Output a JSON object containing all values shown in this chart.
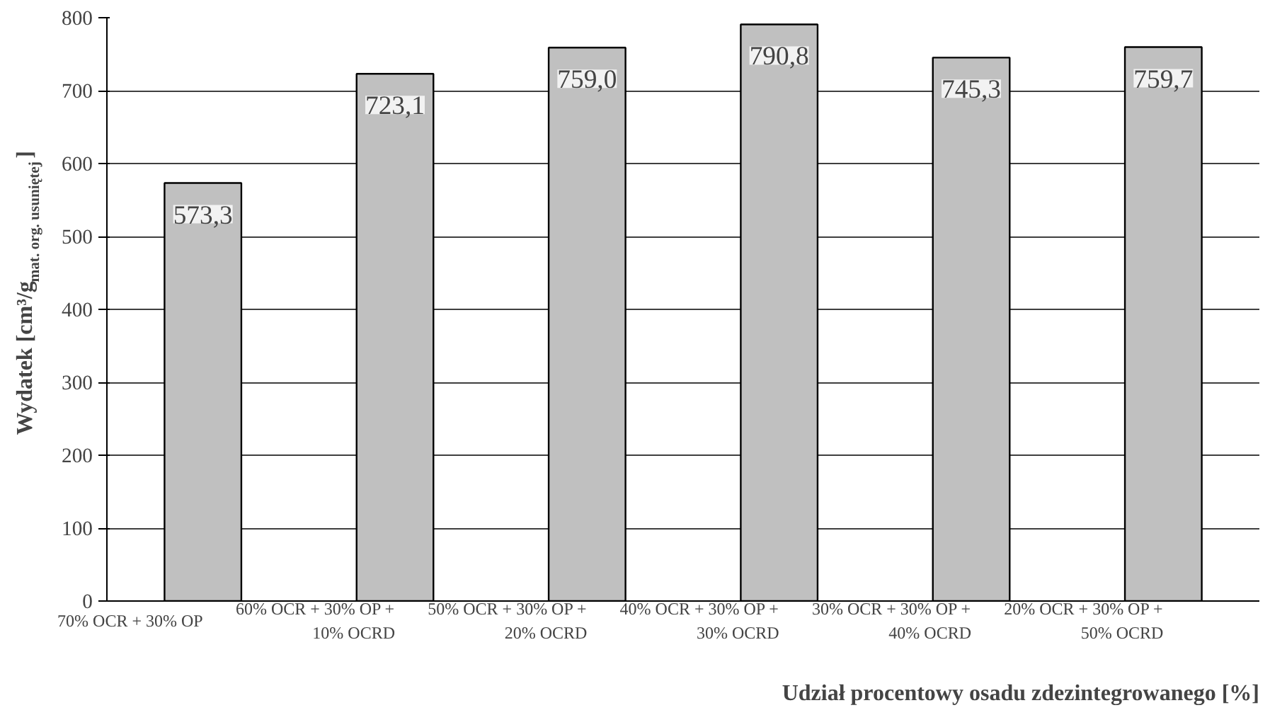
{
  "chart_data": {
    "type": "bar",
    "categories": [
      "70% OCR + 30% OP",
      "60% OCR + 30% OP + 10% OCRD",
      "50% OCR + 30% OP + 20% OCRD",
      "40% OCR + 30% OP + 30% OCRD",
      "30% OCR + 30% OP + 40% OCRD",
      "20% OCR + 30% OP + 50% OCRD"
    ],
    "values": [
      573.3,
      723.1,
      759.0,
      790.8,
      745.3,
      759.7
    ],
    "value_labels": [
      "573,3",
      "723,1",
      "759,0",
      "790,8",
      "745,3",
      "759,7"
    ],
    "color": "#c0c0c0",
    "xlabel": "Udział procentowy osadu zdezintegrowanego [%]",
    "ylabel": "Wydatek  [cm³/g$_{mat. org. usuniętej}$]",
    "ylim": [
      0,
      800
    ],
    "yticks": [
      0,
      100,
      200,
      300,
      400,
      500,
      600,
      700,
      800
    ],
    "grid": "y"
  }
}
